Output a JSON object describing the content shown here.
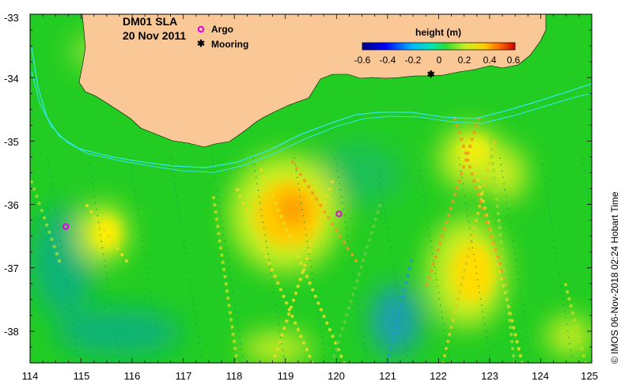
{
  "map": {
    "title": "DM01 SLA",
    "date": "20 Nov 2011",
    "legend": {
      "argo": "Argo",
      "mooring": "Mooring"
    },
    "credit": "© IMOS 06-Nov-2018 02:24 Hobart Time",
    "colors": {
      "land": "#f9c896",
      "ocean_base": "#22cc22",
      "isobath": "#33e6e6",
      "argo": "#e600e6",
      "mooring": "#000000"
    },
    "x_axis": {
      "ticks": [
        "114",
        "115",
        "116",
        "117",
        "118",
        "119",
        "120",
        "121",
        "122",
        "123",
        "124",
        "125"
      ],
      "range": [
        114,
        125
      ]
    },
    "y_axis": {
      "ticks": [
        "-33",
        "-34",
        "-35",
        "-36",
        "-37",
        "-38"
      ],
      "range": [
        -38.5,
        -33
      ]
    },
    "colorbar": {
      "title": "height (m)",
      "ticks": [
        "-0.6",
        "-0.4",
        "-0.2",
        "0",
        "0.2",
        "0.4",
        "0.6"
      ],
      "range": [
        -0.6,
        0.6
      ]
    },
    "argo_floats": [
      {
        "lon": 114.7,
        "lat": -36.35
      },
      {
        "lon": 120.05,
        "lat": -36.15
      }
    ],
    "moorings": [
      {
        "lon": 121.85,
        "lat": -33.95
      }
    ]
  }
}
